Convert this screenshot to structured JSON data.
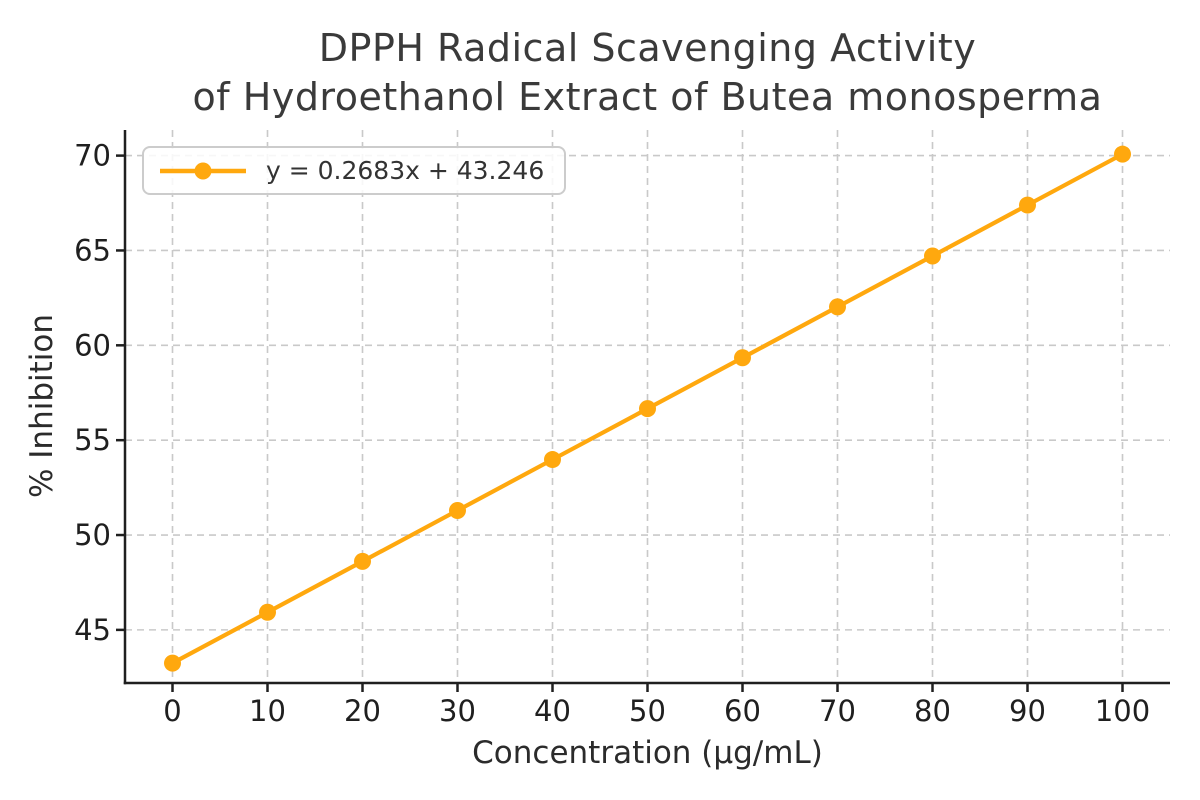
{
  "title": {
    "line1": "DPPH Radical Scavenging Activity",
    "line2": "of Hydroethanol Extract of Butea monosperma"
  },
  "legend": {
    "label": "y = 0.2683x + 43.246"
  },
  "colors": {
    "series": "#FFA80E",
    "grid": "#C9C9C9",
    "axis": "#1F1F1F",
    "tick_label": "#1F1F1F",
    "title_text": "#3A3A3A",
    "legend_border": "#CCCCCC",
    "background": "#FFFFFF"
  },
  "chart_data": {
    "type": "line",
    "title": "DPPH Radical Scavenging Activity of Hydroethanol Extract of Butea monosperma",
    "xlabel": "Concentration (µg/mL)",
    "ylabel": "% Inhibition",
    "equation": "y = 0.2683x + 43.246",
    "series": [
      {
        "name": "y = 0.2683x + 43.246",
        "color": "#FFA80E",
        "marker": "circle",
        "x": [
          0,
          10,
          20,
          30,
          40,
          50,
          60,
          70,
          80,
          90,
          100
        ],
        "y": [
          43.246,
          45.929,
          48.612,
          51.295,
          53.978,
          56.661,
          59.344,
          62.027,
          64.71,
          67.393,
          70.076
        ]
      }
    ],
    "x_ticks": [
      0,
      10,
      20,
      30,
      40,
      50,
      60,
      70,
      80,
      90,
      100
    ],
    "y_ticks": [
      45,
      50,
      55,
      60,
      65,
      70
    ],
    "xlim": [
      -5,
      105
    ],
    "ylim": [
      42.2,
      71.35
    ],
    "grid": "dashed",
    "legend_position": "upper left",
    "spines": [
      "left",
      "bottom"
    ]
  }
}
